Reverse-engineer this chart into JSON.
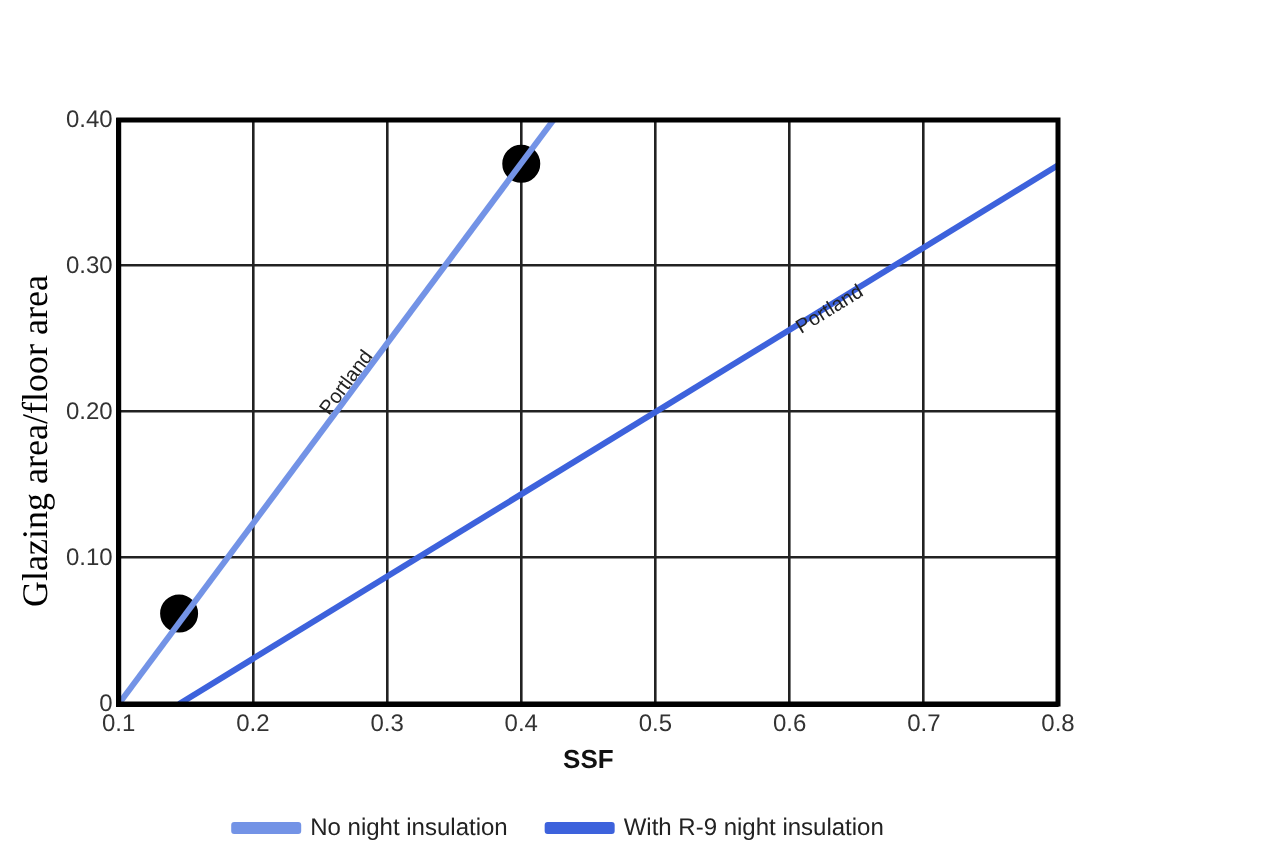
{
  "chart_data": {
    "type": "line",
    "xlabel": "SSF",
    "ylabel": "Glazing area/floor area",
    "series": [
      {
        "name": "No night insulation",
        "color": "#7393e6",
        "x": [
          0.1,
          0.424
        ],
        "values": [
          0,
          0.4
        ]
      },
      {
        "name": "With R-9 night insulation",
        "color": "#3d62dc",
        "x": [
          0.145,
          0.8
        ],
        "values": [
          0,
          0.369
        ]
      },
      {
        "type": "scatter",
        "marker": "circle",
        "color": "#000000",
        "x": [
          0.145,
          0.4
        ],
        "values": [
          0.062,
          0.37
        ]
      }
    ],
    "xlim": [
      0.1,
      0.8
    ],
    "xticks": [
      0.1,
      0.2,
      0.3,
      0.4,
      0.5,
      0.6,
      0.7,
      0.8
    ],
    "ylim": [
      0,
      0.4
    ],
    "yticks": [
      {
        "value": 0,
        "label": "0"
      },
      {
        "value": 0.1,
        "label": "0.10"
      },
      {
        "value": 0.2,
        "label": "0.20"
      },
      {
        "value": 0.3,
        "label": "0.30"
      },
      {
        "value": 0.4,
        "label": "0.40"
      }
    ],
    "grid": true,
    "legend": "bottom",
    "line_style": "solid",
    "annotations": [
      {
        "text": "Portland",
        "x": 0.27,
        "y": 0.22
      },
      {
        "text": "Portland",
        "x": 0.63,
        "y": 0.27
      }
    ]
  }
}
